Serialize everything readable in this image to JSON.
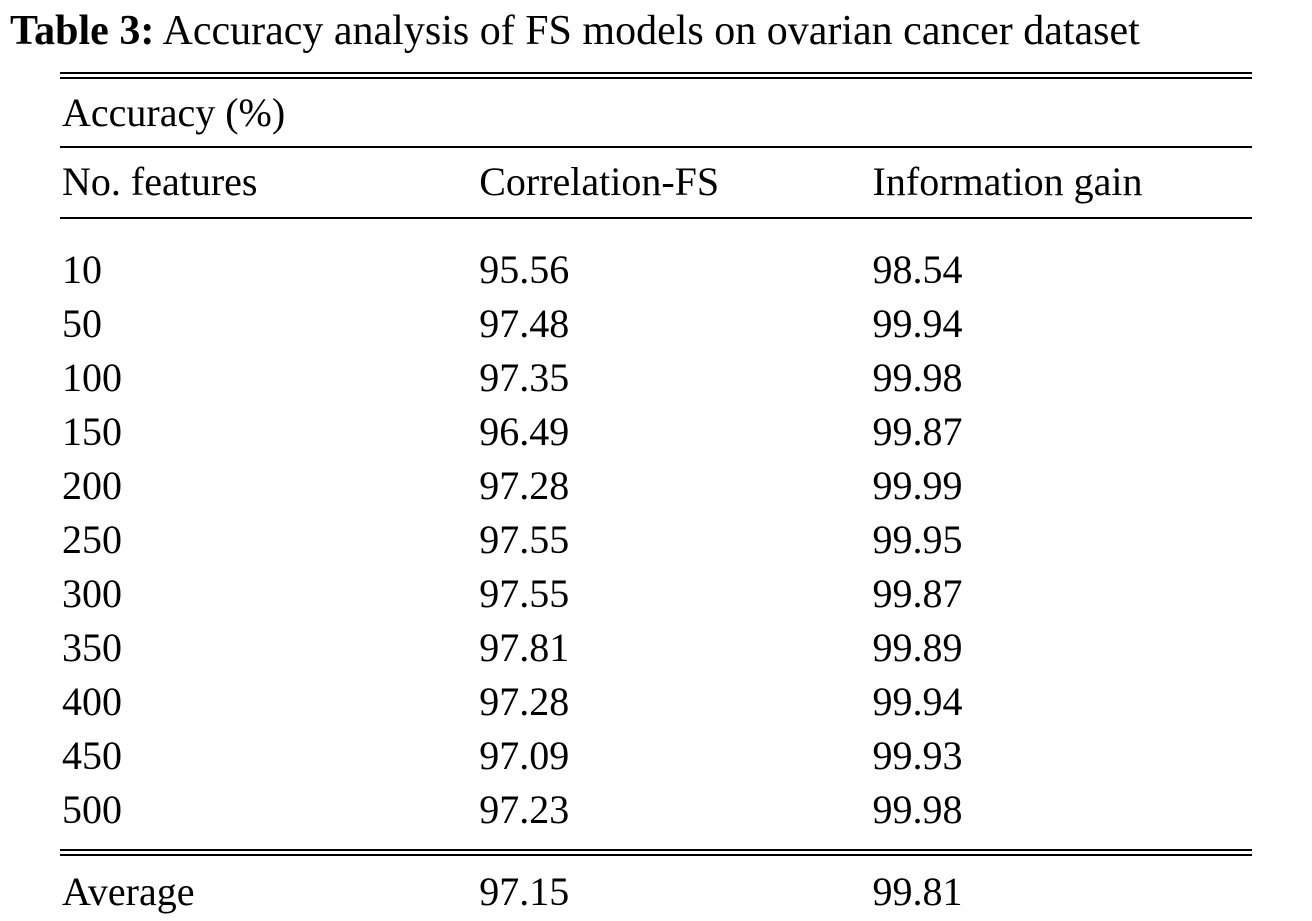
{
  "caption": {
    "label": "Table 3:",
    "text": "Accuracy analysis of FS models on ovarian cancer dataset"
  },
  "table": {
    "group_header": "Accuracy (%)",
    "columns": [
      "No. features",
      "Correlation-FS",
      "Information gain"
    ],
    "rows": [
      [
        "10",
        "95.56",
        "98.54"
      ],
      [
        "50",
        "97.48",
        "99.94"
      ],
      [
        "100",
        "97.35",
        "99.98"
      ],
      [
        "150",
        "96.49",
        "99.87"
      ],
      [
        "200",
        "97.28",
        "99.99"
      ],
      [
        "250",
        "97.55",
        "99.95"
      ],
      [
        "300",
        "97.55",
        "99.87"
      ],
      [
        "350",
        "97.81",
        "99.89"
      ],
      [
        "400",
        "97.28",
        "99.94"
      ],
      [
        "450",
        "97.09",
        "99.93"
      ],
      [
        "500",
        "97.23",
        "99.98"
      ]
    ],
    "footer": [
      "Average",
      "97.15",
      "99.81"
    ]
  },
  "chart_data": {
    "type": "table",
    "title": "Table 3: Accuracy analysis of FS models on ovarian cancer dataset",
    "group_header": "Accuracy (%)",
    "columns": [
      "No. features",
      "Correlation-FS",
      "Information gain"
    ],
    "x": [
      10,
      50,
      100,
      150,
      200,
      250,
      300,
      350,
      400,
      450,
      500
    ],
    "series": [
      {
        "name": "Correlation-FS",
        "values": [
          95.56,
          97.48,
          97.35,
          96.49,
          97.28,
          97.55,
          97.55,
          97.81,
          97.28,
          97.09,
          97.23
        ]
      },
      {
        "name": "Information gain",
        "values": [
          98.54,
          99.94,
          99.98,
          99.87,
          99.99,
          99.95,
          99.87,
          99.89,
          99.94,
          99.93,
          99.98
        ]
      }
    ],
    "averages": {
      "Correlation-FS": 97.15,
      "Information gain": 99.81
    }
  }
}
